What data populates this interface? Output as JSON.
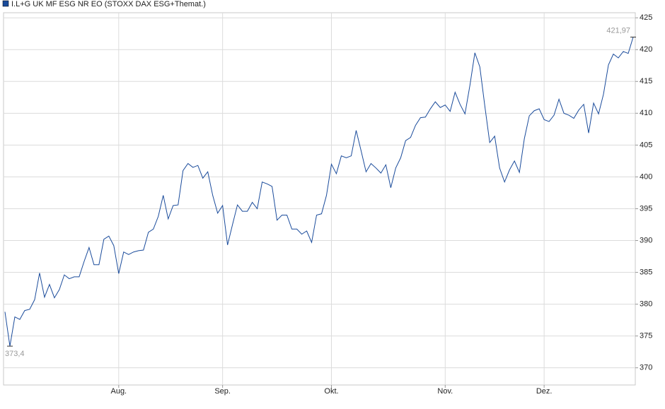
{
  "chart_data": {
    "type": "line",
    "title": "I.L+G UK MF ESG NR EO (STOXX DAX ESG+Themat.)",
    "categories": [
      null,
      null,
      null,
      null,
      null,
      null,
      null,
      null,
      null,
      null,
      null,
      null,
      null,
      null,
      null,
      null,
      null,
      null,
      null,
      null,
      null,
      null,
      null,
      "Aug.",
      null,
      null,
      null,
      null,
      null,
      null,
      null,
      null,
      null,
      null,
      null,
      null,
      null,
      null,
      null,
      null,
      null,
      null,
      null,
      null,
      "Sep.",
      null,
      null,
      null,
      null,
      null,
      null,
      null,
      null,
      null,
      null,
      null,
      null,
      null,
      null,
      null,
      null,
      null,
      null,
      null,
      null,
      null,
      "Okt.",
      null,
      null,
      null,
      null,
      null,
      null,
      null,
      null,
      null,
      null,
      null,
      null,
      null,
      null,
      null,
      null,
      null,
      null,
      null,
      null,
      null,
      null,
      "Nov.",
      null,
      null,
      null,
      null,
      null,
      null,
      null,
      null,
      null,
      null,
      null,
      null,
      null,
      null,
      null,
      null,
      null,
      null,
      null,
      "Dez.",
      null,
      null,
      null,
      null,
      null,
      null,
      null,
      null,
      null,
      null,
      null,
      null,
      null,
      null,
      null,
      null,
      null,
      null
    ],
    "values": [
      378.8,
      373.4,
      378.0,
      377.6,
      379.0,
      379.2,
      380.7,
      384.9,
      381.1,
      383.1,
      381.0,
      382.3,
      384.6,
      384.0,
      384.3,
      384.3,
      386.7,
      388.9,
      386.2,
      386.2,
      390.2,
      390.7,
      389.2,
      384.8,
      388.2,
      387.8,
      388.2,
      388.4,
      388.5,
      391.3,
      391.8,
      393.8,
      397.1,
      393.4,
      395.5,
      395.6,
      401.0,
      402.1,
      401.5,
      401.8,
      399.8,
      400.8,
      397.1,
      394.3,
      395.5,
      389.3,
      392.5,
      395.6,
      394.6,
      394.6,
      396.0,
      395.0,
      399.2,
      398.9,
      398.5,
      393.2,
      394.0,
      394.0,
      391.8,
      391.8,
      391.0,
      391.5,
      389.7,
      394.0,
      394.2,
      397.1,
      402.0,
      400.5,
      403.3,
      403.0,
      403.3,
      407.3,
      404.1,
      400.8,
      402.1,
      401.4,
      400.6,
      401.9,
      398.3,
      401.4,
      403.0,
      405.7,
      406.2,
      408.1,
      409.3,
      409.4,
      410.7,
      411.8,
      410.9,
      411.3,
      410.3,
      413.3,
      411.4,
      409.9,
      414.4,
      419.5,
      417.3,
      411.2,
      405.4,
      406.4,
      401.4,
      399.2,
      401.1,
      402.5,
      400.7,
      406.0,
      409.6,
      410.4,
      410.7,
      409.0,
      408.7,
      409.7,
      412.2,
      410.0,
      409.7,
      409.2,
      410.5,
      411.4,
      406.9,
      411.6,
      409.9,
      413.0,
      417.6,
      419.3,
      418.7,
      419.7,
      419.4,
      421.97
    ],
    "value_labels": [
      null,
      "373,4",
      null,
      null,
      null,
      null,
      null,
      null,
      null,
      null,
      null,
      null,
      null,
      null,
      null,
      null,
      null,
      null,
      null,
      null,
      null,
      null,
      null,
      null,
      null,
      null,
      null,
      null,
      null,
      null,
      null,
      null,
      null,
      null,
      null,
      null,
      null,
      null,
      null,
      null,
      null,
      null,
      null,
      null,
      null,
      null,
      null,
      null,
      null,
      null,
      null,
      null,
      null,
      null,
      null,
      null,
      null,
      null,
      null,
      null,
      null,
      null,
      null,
      null,
      null,
      null,
      null,
      null,
      null,
      null,
      null,
      null,
      null,
      null,
      null,
      null,
      null,
      null,
      null,
      null,
      null,
      null,
      null,
      null,
      null,
      null,
      null,
      null,
      null,
      null,
      null,
      null,
      null,
      null,
      null,
      null,
      null,
      null,
      null,
      null,
      null,
      null,
      null,
      null,
      null,
      null,
      null,
      null,
      null,
      null,
      null,
      null,
      null,
      null,
      null,
      null,
      null,
      null,
      null,
      null,
      null,
      null,
      null,
      null,
      null,
      null,
      null,
      "421,97"
    ],
    "color": "#1a4b9b",
    "ylim": [
      367.3,
      425.8
    ],
    "yticks": [
      370,
      375,
      380,
      385,
      390,
      395,
      400,
      405,
      410,
      415,
      420,
      425
    ],
    "grid": true
  }
}
